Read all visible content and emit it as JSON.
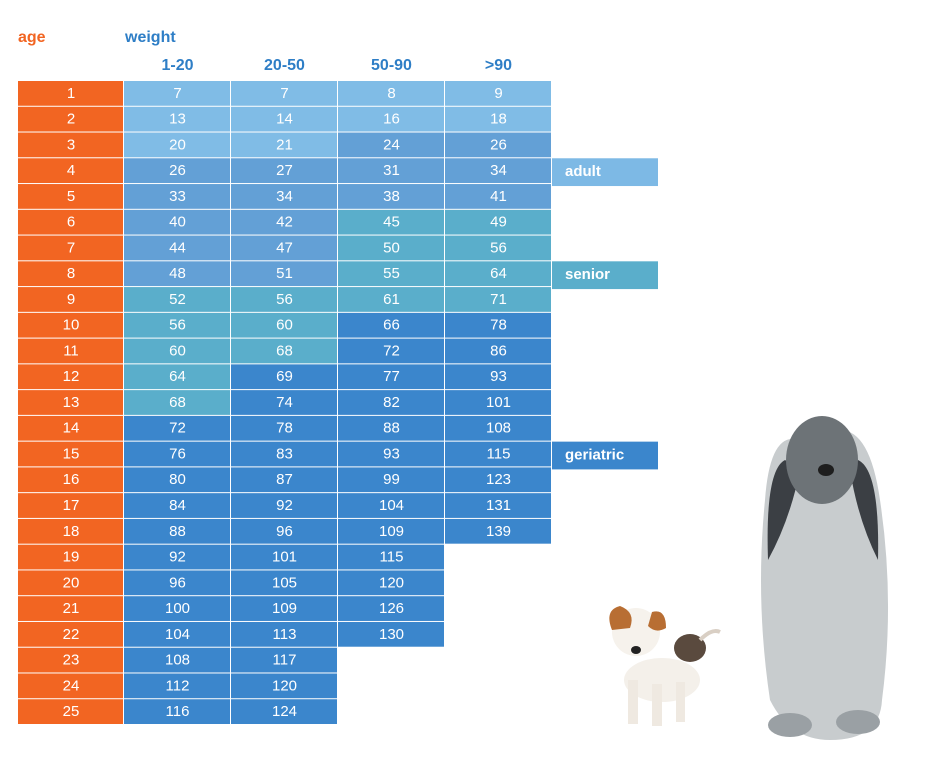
{
  "header": {
    "age_label": "age",
    "age_color": "#f26522",
    "weight_label": "weight",
    "weight_color": "#2e7ec6",
    "weight_columns": [
      "1-20",
      "20-50",
      "50-90",
      ">90"
    ]
  },
  "rows": [
    {
      "age": 1,
      "cells": [
        {
          "value": 7,
          "color": "#80bce6"
        },
        {
          "value": 7,
          "color": "#80bce6"
        },
        {
          "value": 8,
          "color": "#80bce6"
        },
        {
          "value": 9,
          "color": "#80bce6"
        }
      ]
    },
    {
      "age": 2,
      "cells": [
        {
          "value": 13,
          "color": "#80bce6"
        },
        {
          "value": 14,
          "color": "#80bce6"
        },
        {
          "value": 16,
          "color": "#80bce6"
        },
        {
          "value": 18,
          "color": "#80bce6"
        }
      ]
    },
    {
      "age": 3,
      "cells": [
        {
          "value": 20,
          "color": "#80bce6"
        },
        {
          "value": 21,
          "color": "#80bce6"
        },
        {
          "value": 24,
          "color": "#63a0d6"
        },
        {
          "value": 26,
          "color": "#63a0d6"
        }
      ]
    },
    {
      "age": 4,
      "cells": [
        {
          "value": 26,
          "color": "#63a0d6"
        },
        {
          "value": 27,
          "color": "#63a0d6"
        },
        {
          "value": 31,
          "color": "#63a0d6"
        },
        {
          "value": 34,
          "color": "#63a0d6"
        }
      ]
    },
    {
      "age": 5,
      "cells": [
        {
          "value": 33,
          "color": "#63a0d6"
        },
        {
          "value": 34,
          "color": "#63a0d6"
        },
        {
          "value": 38,
          "color": "#63a0d6"
        },
        {
          "value": 41,
          "color": "#63a0d6"
        }
      ]
    },
    {
      "age": 6,
      "cells": [
        {
          "value": 40,
          "color": "#63a0d6"
        },
        {
          "value": 42,
          "color": "#63a0d6"
        },
        {
          "value": 45,
          "color": "#5aaecb"
        },
        {
          "value": 49,
          "color": "#5aaecb"
        }
      ]
    },
    {
      "age": 7,
      "cells": [
        {
          "value": 44,
          "color": "#63a0d6"
        },
        {
          "value": 47,
          "color": "#63a0d6"
        },
        {
          "value": 50,
          "color": "#5aaecb"
        },
        {
          "value": 56,
          "color": "#5aaecb"
        }
      ]
    },
    {
      "age": 8,
      "cells": [
        {
          "value": 48,
          "color": "#63a0d6"
        },
        {
          "value": 51,
          "color": "#63a0d6"
        },
        {
          "value": 55,
          "color": "#5aaecb"
        },
        {
          "value": 64,
          "color": "#5aaecb"
        }
      ]
    },
    {
      "age": 9,
      "cells": [
        {
          "value": 52,
          "color": "#5aaecb"
        },
        {
          "value": 56,
          "color": "#5aaecb"
        },
        {
          "value": 61,
          "color": "#5aaecb"
        },
        {
          "value": 71,
          "color": "#5aaecb"
        }
      ]
    },
    {
      "age": 10,
      "cells": [
        {
          "value": 56,
          "color": "#5aaecb"
        },
        {
          "value": 60,
          "color": "#5aaecb"
        },
        {
          "value": 66,
          "color": "#3b86cc"
        },
        {
          "value": 78,
          "color": "#3b86cc"
        }
      ]
    },
    {
      "age": 11,
      "cells": [
        {
          "value": 60,
          "color": "#5aaecb"
        },
        {
          "value": 68,
          "color": "#5aaecb"
        },
        {
          "value": 72,
          "color": "#3b86cc"
        },
        {
          "value": 86,
          "color": "#3b86cc"
        }
      ]
    },
    {
      "age": 12,
      "cells": [
        {
          "value": 64,
          "color": "#5aaecb"
        },
        {
          "value": 69,
          "color": "#3b86cc"
        },
        {
          "value": 77,
          "color": "#3b86cc"
        },
        {
          "value": 93,
          "color": "#3b86cc"
        }
      ]
    },
    {
      "age": 13,
      "cells": [
        {
          "value": 68,
          "color": "#5aaecb"
        },
        {
          "value": 74,
          "color": "#3b86cc"
        },
        {
          "value": 82,
          "color": "#3b86cc"
        },
        {
          "value": 101,
          "color": "#3b86cc"
        }
      ]
    },
    {
      "age": 14,
      "cells": [
        {
          "value": 72,
          "color": "#3b86cc"
        },
        {
          "value": 78,
          "color": "#3b86cc"
        },
        {
          "value": 88,
          "color": "#3b86cc"
        },
        {
          "value": 108,
          "color": "#3b86cc"
        }
      ]
    },
    {
      "age": 15,
      "cells": [
        {
          "value": 76,
          "color": "#3b86cc"
        },
        {
          "value": 83,
          "color": "#3b86cc"
        },
        {
          "value": 93,
          "color": "#3b86cc"
        },
        {
          "value": 115,
          "color": "#3b86cc"
        }
      ]
    },
    {
      "age": 16,
      "cells": [
        {
          "value": 80,
          "color": "#3b86cc"
        },
        {
          "value": 87,
          "color": "#3b86cc"
        },
        {
          "value": 99,
          "color": "#3b86cc"
        },
        {
          "value": 123,
          "color": "#3b86cc"
        }
      ]
    },
    {
      "age": 17,
      "cells": [
        {
          "value": 84,
          "color": "#3b86cc"
        },
        {
          "value": 92,
          "color": "#3b86cc"
        },
        {
          "value": 104,
          "color": "#3b86cc"
        },
        {
          "value": 131,
          "color": "#3b86cc"
        }
      ]
    },
    {
      "age": 18,
      "cells": [
        {
          "value": 88,
          "color": "#3b86cc"
        },
        {
          "value": 96,
          "color": "#3b86cc"
        },
        {
          "value": 109,
          "color": "#3b86cc"
        },
        {
          "value": 139,
          "color": "#3b86cc"
        }
      ]
    },
    {
      "age": 19,
      "cells": [
        {
          "value": 92,
          "color": "#3b86cc"
        },
        {
          "value": 101,
          "color": "#3b86cc"
        },
        {
          "value": 115,
          "color": "#3b86cc"
        }
      ]
    },
    {
      "age": 20,
      "cells": [
        {
          "value": 96,
          "color": "#3b86cc"
        },
        {
          "value": 105,
          "color": "#3b86cc"
        },
        {
          "value": 120,
          "color": "#3b86cc"
        }
      ]
    },
    {
      "age": 21,
      "cells": [
        {
          "value": 100,
          "color": "#3b86cc"
        },
        {
          "value": 109,
          "color": "#3b86cc"
        },
        {
          "value": 126,
          "color": "#3b86cc"
        }
      ]
    },
    {
      "age": 22,
      "cells": [
        {
          "value": 104,
          "color": "#3b86cc"
        },
        {
          "value": 113,
          "color": "#3b86cc"
        },
        {
          "value": 130,
          "color": "#3b86cc"
        }
      ]
    },
    {
      "age": 23,
      "cells": [
        {
          "value": 108,
          "color": "#3b86cc"
        },
        {
          "value": 117,
          "color": "#3b86cc"
        }
      ]
    },
    {
      "age": 24,
      "cells": [
        {
          "value": 112,
          "color": "#3b86cc"
        },
        {
          "value": 120,
          "color": "#3b86cc"
        }
      ]
    },
    {
      "age": 25,
      "cells": [
        {
          "value": 116,
          "color": "#3b86cc"
        },
        {
          "value": 124,
          "color": "#3b86cc"
        }
      ]
    }
  ],
  "legend": [
    {
      "label": "adult",
      "color": "#7db9e5"
    },
    {
      "label": "senior",
      "color": "#5aaecb"
    },
    {
      "label": "geriatric",
      "color": "#3b86cc"
    }
  ]
}
